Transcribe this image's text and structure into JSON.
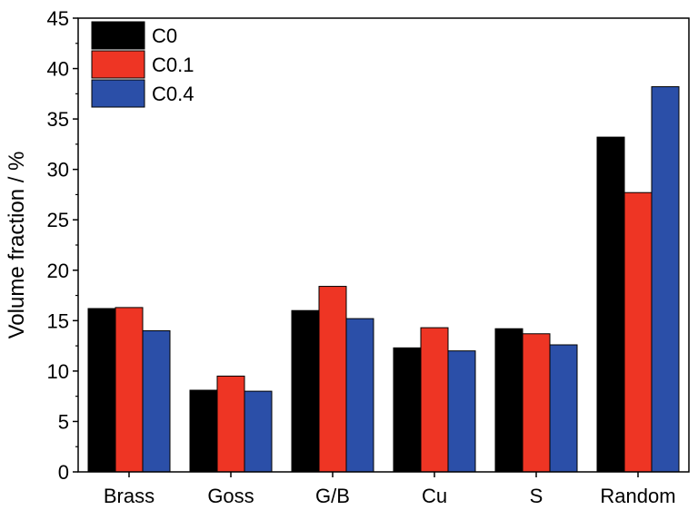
{
  "chart_data": {
    "type": "bar",
    "categories": [
      "Brass",
      "Goss",
      "G/B",
      "Cu",
      "S",
      "Random"
    ],
    "series": [
      {
        "name": "C0",
        "color": "#000000",
        "values": [
          16.2,
          8.1,
          16.0,
          12.3,
          14.2,
          33.2
        ]
      },
      {
        "name": "C0.1",
        "color": "#ee3524",
        "values": [
          16.3,
          9.5,
          18.4,
          14.3,
          13.7,
          27.7
        ]
      },
      {
        "name": "C0.4",
        "color": "#2b4fa8",
        "values": [
          14.0,
          8.0,
          15.2,
          12.0,
          12.6,
          38.2
        ]
      }
    ],
    "ylabel": "Volume fraction / %",
    "xlabel": "",
    "ylim": [
      0,
      45
    ],
    "yticks": [
      0,
      5,
      10,
      15,
      20,
      25,
      30,
      35,
      40,
      45
    ],
    "grid": false,
    "legend_position": "top-left"
  }
}
